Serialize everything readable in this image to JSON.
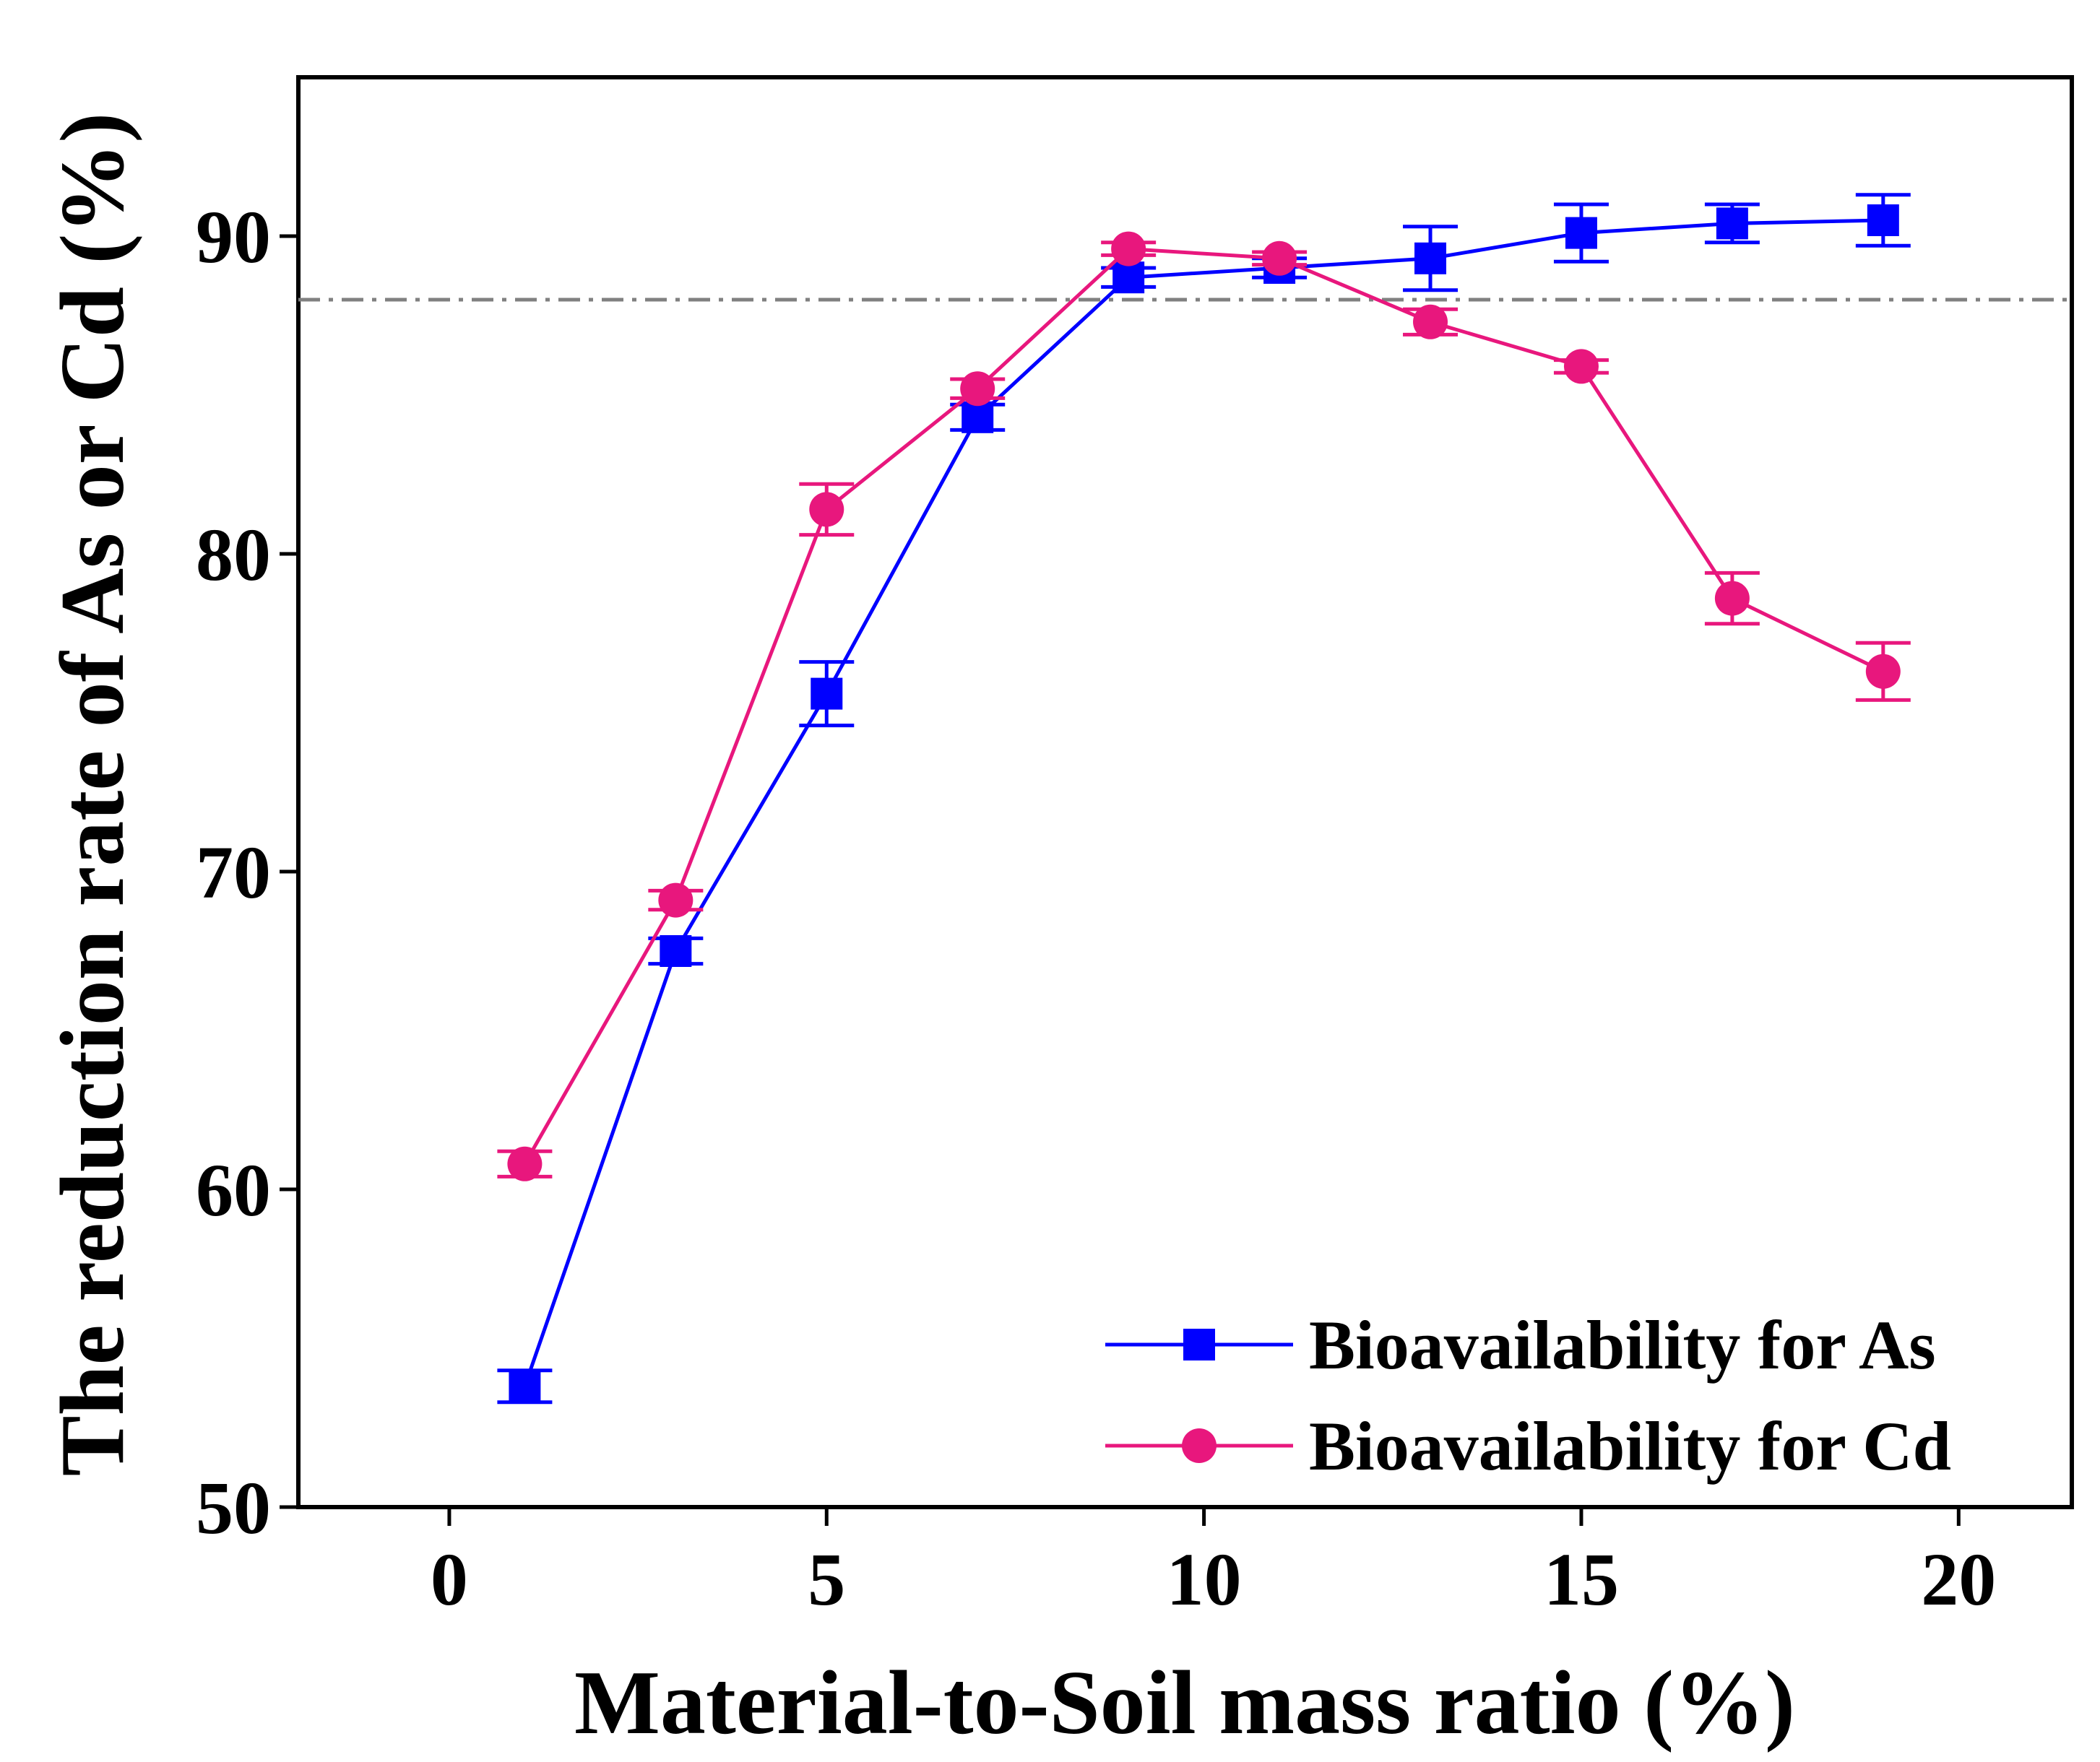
{
  "chart_data": {
    "type": "line",
    "title": "",
    "xlabel": "Material-to-Soil mass ratio (%)",
    "ylabel": "The reduction rate of As or Cd (%)",
    "xlim": [
      -2,
      21.5
    ],
    "ylim": [
      50,
      95
    ],
    "xticks": [
      0,
      5,
      10,
      15,
      20
    ],
    "yticks": [
      50,
      60,
      70,
      80,
      90
    ],
    "xtick_labels": [
      "0",
      "5",
      "10",
      "15",
      "20"
    ],
    "ytick_labels": [
      "50",
      "60",
      "70",
      "80",
      "90"
    ],
    "grid": false,
    "legend_position": "bottom-right",
    "reference_line": {
      "y": 88,
      "style": "dash-dot",
      "color": "#808080"
    },
    "x": [
      1,
      3,
      5,
      7,
      9,
      11,
      13,
      15,
      17,
      19
    ],
    "series": [
      {
        "name": "Bioavailability for As",
        "color": "#0000ff",
        "marker": "square",
        "values": [
          53.8,
          67.5,
          75.6,
          84.3,
          88.7,
          89.0,
          89.3,
          90.1,
          90.4,
          90.5
        ],
        "errors": [
          0.5,
          0.4,
          1.0,
          0.4,
          0.3,
          0.3,
          1.0,
          0.9,
          0.6,
          0.8
        ]
      },
      {
        "name": "Bioavailability for Cd",
        "color": "#e8177d",
        "marker": "circle",
        "values": [
          60.8,
          69.1,
          81.4,
          85.2,
          89.6,
          89.3,
          87.3,
          85.9,
          78.6,
          76.3
        ],
        "errors": [
          0.4,
          0.3,
          0.8,
          0.3,
          0.2,
          0.2,
          0.4,
          0.2,
          0.8,
          0.9
        ]
      }
    ]
  }
}
